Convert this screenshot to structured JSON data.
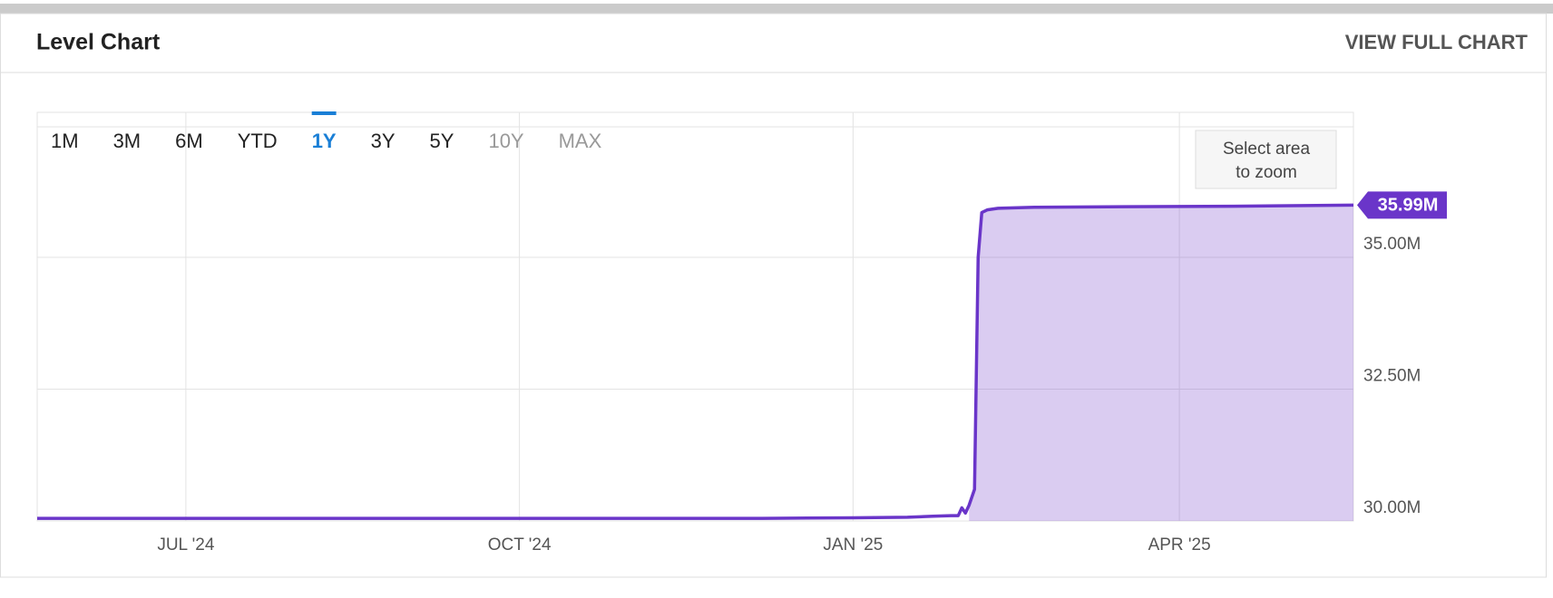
{
  "header": {
    "title": "Level Chart",
    "link": "VIEW FULL CHART"
  },
  "chart_data": {
    "type": "area",
    "range_buttons": [
      "1M",
      "3M",
      "6M",
      "YTD",
      "1Y",
      "3Y",
      "5Y",
      "10Y",
      "MAX"
    ],
    "active_range": 4,
    "disabled_ranges": [
      7,
      8
    ],
    "zoom_hint": "Select area to zoom",
    "x": [
      0,
      100,
      200,
      225,
      240,
      247,
      252,
      254,
      255,
      256,
      257,
      258.5,
      259.5,
      260.5,
      262,
      265,
      275,
      300,
      330,
      363
    ],
    "series": [
      {
        "name": "Level",
        "color": "#6a35c9",
        "values": [
          30.05,
          30.05,
          30.05,
          30.06,
          30.07,
          30.09,
          30.1,
          30.1,
          30.25,
          30.15,
          30.3,
          30.6,
          35.0,
          35.85,
          35.9,
          35.93,
          35.95,
          35.96,
          35.97,
          35.99
        ],
        "last_label": "35.99M"
      }
    ],
    "xlim": [
      0,
      363
    ],
    "xticks": [
      {
        "value": 41,
        "label": "JUL '24"
      },
      {
        "value": 133,
        "label": "OCT '24"
      },
      {
        "value": 225,
        "label": "JAN '25"
      },
      {
        "value": 315,
        "label": "APR '25"
      }
    ],
    "ylim": [
      30,
      37.75
    ],
    "yticks": [
      {
        "value": 30,
        "label": "30.00M"
      },
      {
        "value": 32.5,
        "label": "32.50M"
      },
      {
        "value": 35,
        "label": "35.00M"
      }
    ],
    "grid": true
  }
}
